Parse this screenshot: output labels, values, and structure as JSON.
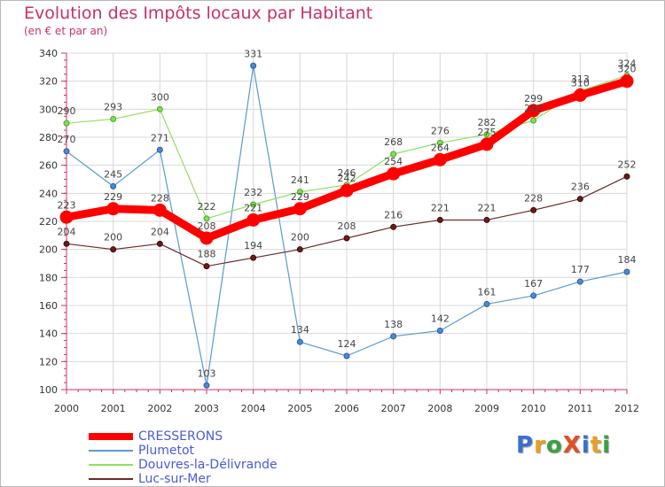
{
  "title": "Evolution des Impôts locaux par Habitant",
  "subtitle": "(en € et par an)",
  "logo": {
    "text": "ProXiti",
    "letters": [
      "P",
      "r",
      "o",
      "X",
      "i",
      "t",
      "i"
    ],
    "colors": [
      "#3a6fd0",
      "#e8a020",
      "#3aa040",
      "#e05020",
      "#3a6fd0",
      "#e8a020",
      "#3aa040"
    ]
  },
  "chart_data": {
    "type": "line",
    "title": "Evolution des Impôts locaux par Habitant",
    "ylabel": "(en € et par an)",
    "xlabel": "",
    "x": [
      "2000",
      "2001",
      "2002",
      "2003",
      "2004",
      "2005",
      "2006",
      "2007",
      "2008",
      "2009",
      "2010",
      "2011",
      "2012"
    ],
    "ylim": [
      100,
      340
    ],
    "yticks": [
      100,
      120,
      140,
      160,
      180,
      200,
      220,
      240,
      260,
      280,
      300,
      320,
      340
    ],
    "grid": true,
    "legend_position": "bottom-left",
    "series": [
      {
        "name": "CRESSERONS",
        "color": "#ff0000",
        "values": [
          223,
          229,
          228,
          208,
          221,
          229,
          242,
          254,
          264,
          275,
          299,
          310,
          320
        ],
        "labels": [
          "223",
          "229",
          "228",
          "208",
          "221",
          "229",
          "242",
          "254",
          "264",
          "275",
          "299",
          "310",
          "320"
        ]
      },
      {
        "name": "Plumetot",
        "color": "#5a9ad2",
        "values": [
          270,
          245,
          271,
          103,
          331,
          134,
          124,
          138,
          142,
          161,
          167,
          177,
          184
        ],
        "labels": [
          "270",
          "245",
          "271",
          "103",
          "331",
          "134",
          "124",
          "138",
          "142",
          "161",
          "167",
          "177",
          "184"
        ]
      },
      {
        "name": "Douvres-la-Délivrande",
        "color": "#90e060",
        "values": [
          290,
          293,
          300,
          222,
          232,
          241,
          246,
          268,
          276,
          282,
          292,
          313,
          324
        ],
        "labels": [
          "290",
          "293",
          "300",
          "222",
          "232",
          "241",
          "246",
          "268",
          "276",
          "282",
          "292",
          "313",
          "324"
        ]
      },
      {
        "name": "Luc-sur-Mer",
        "color": "#6b2a2a",
        "values": [
          204,
          200,
          204,
          188,
          194,
          200,
          208,
          216,
          221,
          221,
          228,
          236,
          252
        ],
        "labels": [
          "204",
          "200",
          "204",
          "188",
          "194",
          "200",
          "208",
          "216",
          "221",
          "221",
          "228",
          "236",
          "252"
        ]
      }
    ]
  }
}
